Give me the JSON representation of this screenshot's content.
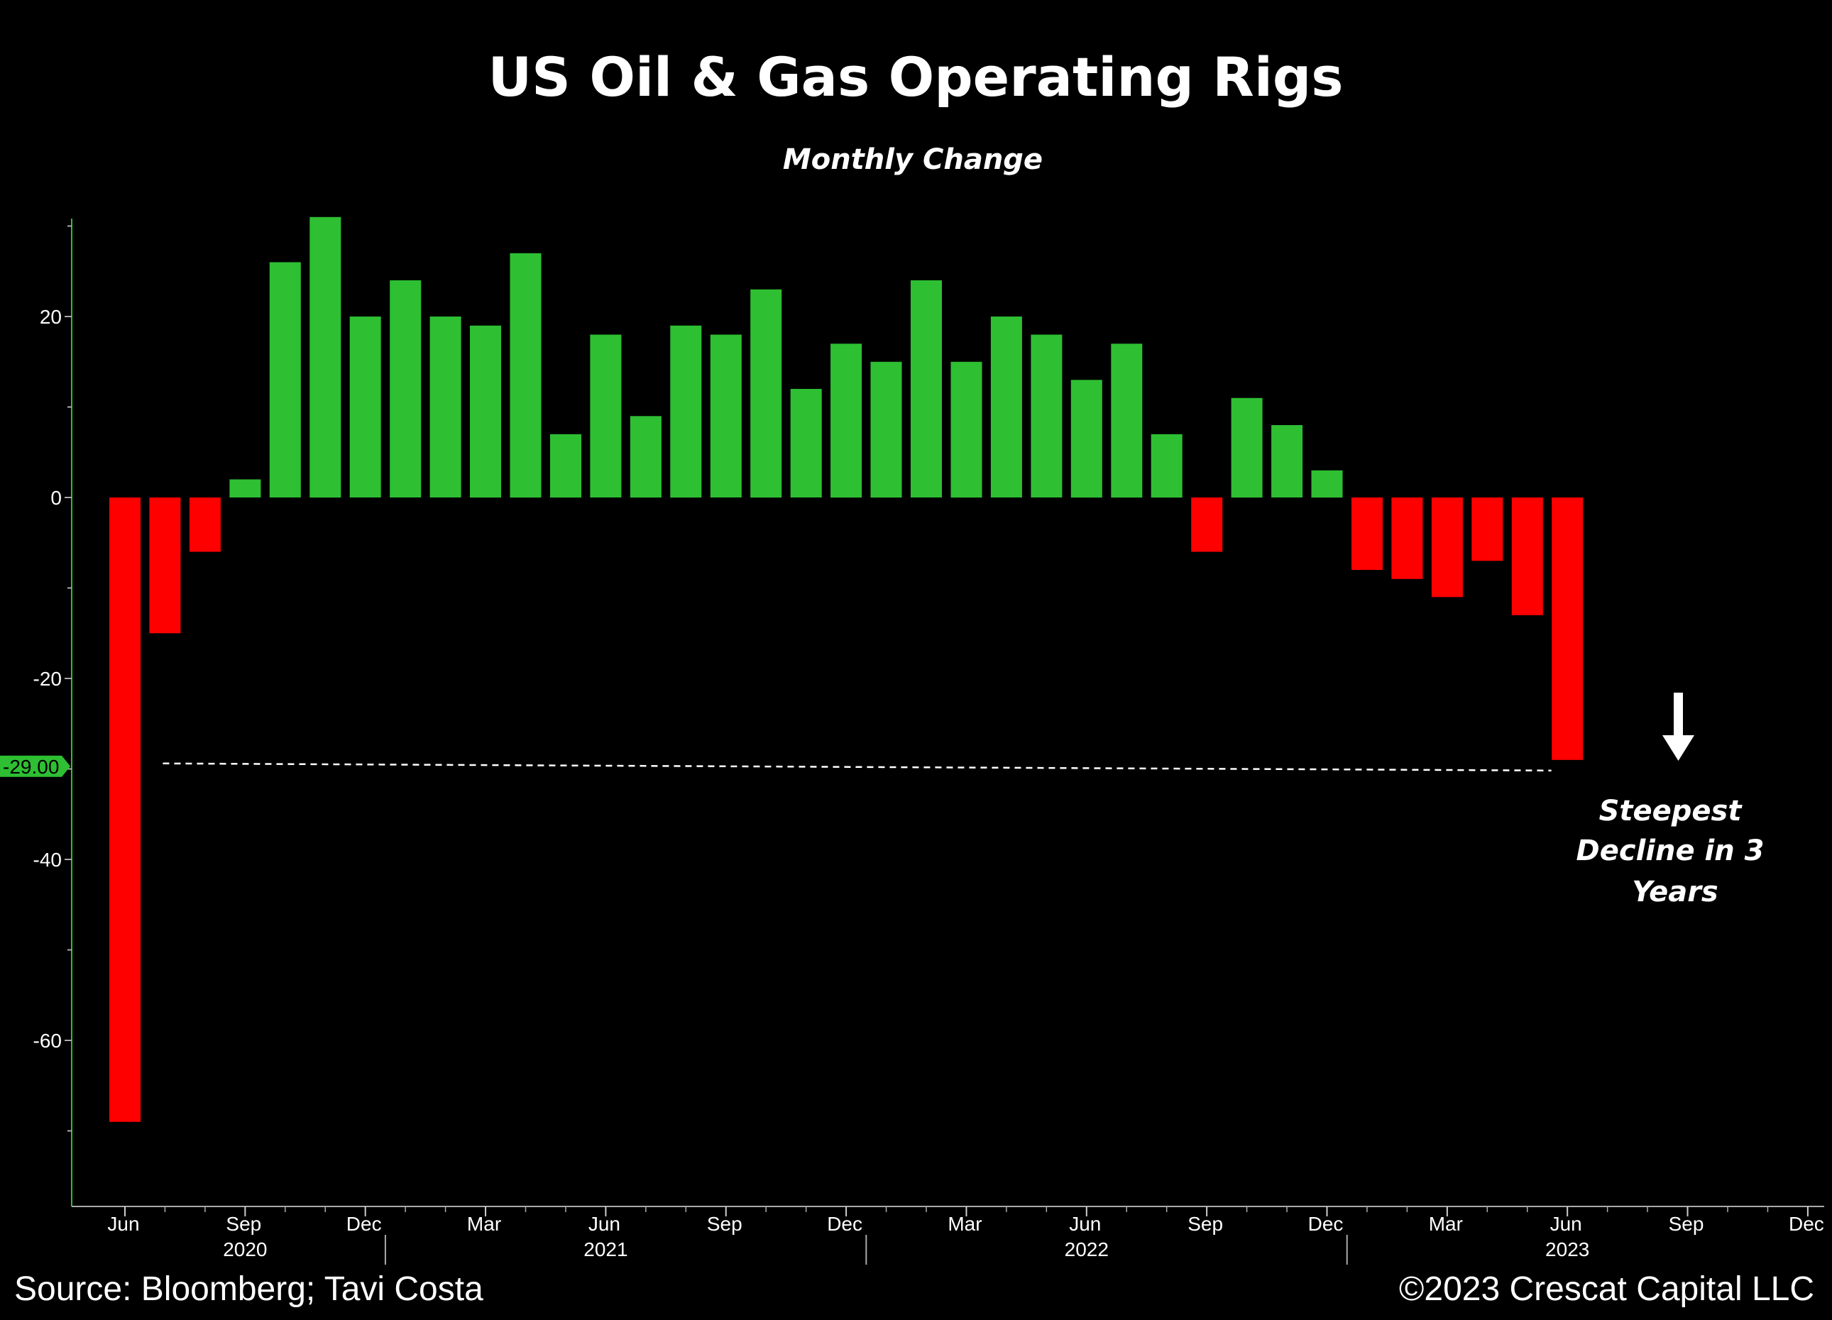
{
  "chart_data": {
    "type": "bar",
    "title": "US Oil & Gas Operating Rigs",
    "subtitle": "Monthly Change",
    "ylim": [
      -78,
      31
    ],
    "yticks": [
      20,
      0,
      -20,
      -40,
      -60
    ],
    "ytick_labels": [
      "20",
      "0",
      "-20",
      "-40",
      "-60"
    ],
    "x_start": "2020-06",
    "x_months_total": 43,
    "values": [
      -69,
      -15,
      -6,
      2,
      26,
      31,
      20,
      24,
      20,
      19,
      27,
      7,
      18,
      9,
      19,
      18,
      23,
      12,
      17,
      15,
      24,
      15,
      20,
      18,
      13,
      17,
      7,
      -6,
      11,
      8,
      3,
      -8,
      -9,
      -11,
      -7,
      -13,
      -29
    ],
    "positive_color": "#2ebf33",
    "negative_color": "#ff0000",
    "month_ticks": [
      {
        "index": 0,
        "label": "Jun"
      },
      {
        "index": 3,
        "label": "Sep"
      },
      {
        "index": 6,
        "label": "Dec"
      },
      {
        "index": 9,
        "label": "Mar"
      },
      {
        "index": 12,
        "label": "Jun"
      },
      {
        "index": 15,
        "label": "Sep"
      },
      {
        "index": 18,
        "label": "Dec"
      },
      {
        "index": 21,
        "label": "Mar"
      },
      {
        "index": 24,
        "label": "Jun"
      },
      {
        "index": 27,
        "label": "Sep"
      },
      {
        "index": 30,
        "label": "Dec"
      },
      {
        "index": 33,
        "label": "Mar"
      },
      {
        "index": 36,
        "label": "Jun"
      },
      {
        "index": 39,
        "label": "Sep"
      },
      {
        "index": 42,
        "label": "Dec"
      }
    ],
    "year_labels": [
      {
        "index": 3,
        "label": "2020"
      },
      {
        "index": 12,
        "label": "2021"
      },
      {
        "index": 24,
        "label": "2022"
      },
      {
        "index": 36,
        "label": "2023"
      }
    ],
    "year_separators": [
      6.5,
      18.5,
      30.5
    ],
    "reference_line": {
      "value": -29,
      "label": "-29.00",
      "from_index": 1,
      "to_index": 35.6
    },
    "annotation": {
      "lines": [
        "Steepest",
        "Decline in 3",
        "Years"
      ]
    }
  },
  "footer": {
    "source": "Source: Bloomberg; Tavi Costa",
    "copyright": "©2023 Crescat Capital LLC"
  }
}
